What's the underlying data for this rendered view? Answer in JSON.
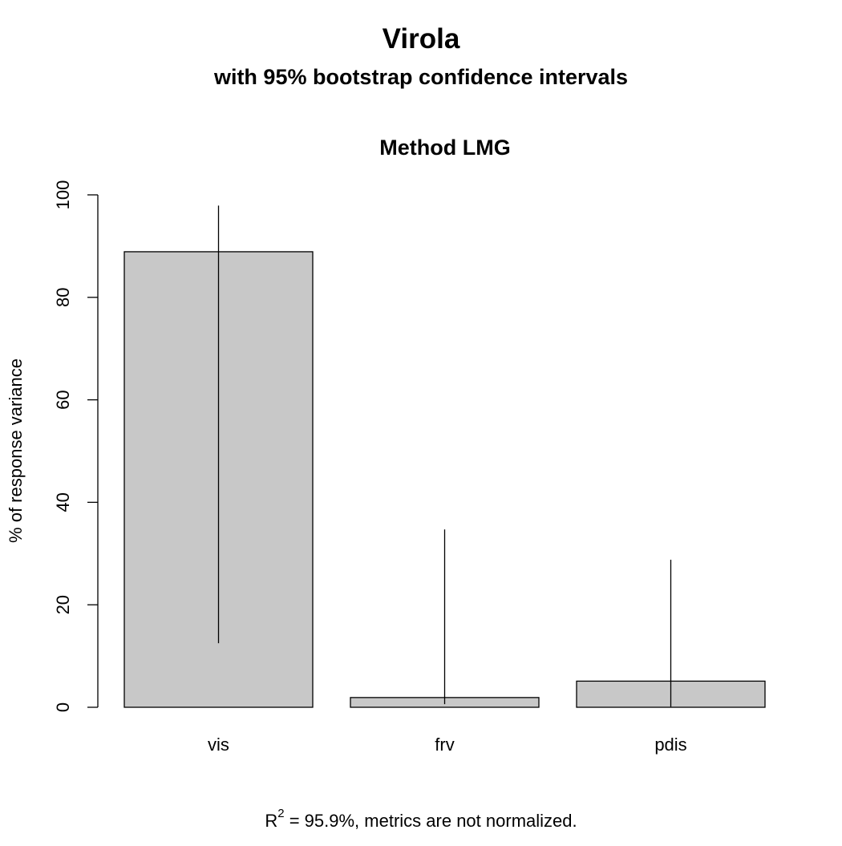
{
  "chart_data": {
    "type": "bar",
    "title": "Virola",
    "subtitle": "with 95% bootstrap confidence intervals",
    "panel_title": "Method LMG",
    "categories": [
      "vis",
      "frv",
      "pdis"
    ],
    "values": [
      88.9,
      1.9,
      5.1
    ],
    "ci_lower": [
      12.5,
      0.6,
      0.1
    ],
    "ci_upper": [
      97.9,
      34.7,
      28.8
    ],
    "ylabel": "% of response variance",
    "xlabel": "",
    "ylim": [
      0,
      100
    ],
    "yticks": [
      0,
      20,
      40,
      60,
      80,
      100
    ],
    "bar_color": "#c8c8c8",
    "edge_color": "#000000",
    "grid": false,
    "footnote": {
      "r_symbol": "R",
      "r_exponent": "2",
      "text": " = 95.9%, metrics are not normalized."
    }
  }
}
